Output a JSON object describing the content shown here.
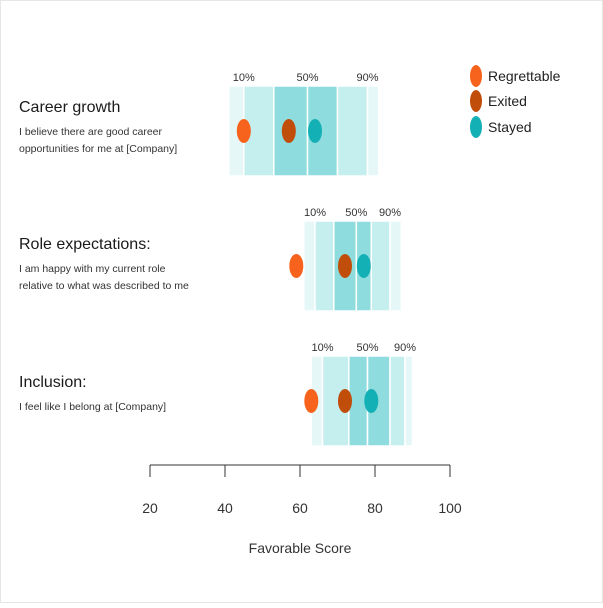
{
  "chart_data": {
    "type": "scatter",
    "xlabel": "Favorable Score",
    "xlim": [
      20,
      100
    ],
    "x_ticks": [
      20,
      40,
      60,
      80,
      100
    ],
    "x_tick_labels": [
      "20",
      "40",
      "60",
      "80",
      "100"
    ],
    "legend": {
      "position": "top-right",
      "entries": [
        {
          "name": "Regrettable",
          "color": "#f7631c"
        },
        {
          "name": "Exited",
          "color": "#c14d0b"
        },
        {
          "name": "Stayed",
          "color": "#13b0b5"
        }
      ]
    },
    "band_colors": [
      "#e6f7f8",
      "#c5eeef",
      "#8fdcdf"
    ],
    "percentile_labels": [
      "10%",
      "50%",
      "90%"
    ],
    "categories": [
      {
        "title": "Career growth",
        "description": [
          "I believe there are good career",
          "opportunities for me at [Company]"
        ],
        "bands": [
          41,
          45,
          53,
          62,
          70,
          78,
          81
        ],
        "p10": 45,
        "p50": 62,
        "p90": 78,
        "points": {
          "Regrettable": 45,
          "Exited": 57,
          "Stayed": 64
        }
      },
      {
        "title": "Role expectations:",
        "description": [
          "I am happy with my current role",
          "relative to what was described to me"
        ],
        "bands": [
          61,
          64,
          69,
          75,
          79,
          84,
          87
        ],
        "p10": 64,
        "p50": 75,
        "p90": 84,
        "points": {
          "Regrettable": 59,
          "Exited": 72,
          "Stayed": 77
        }
      },
      {
        "title": "Inclusion:",
        "description": [
          "I feel like I belong at [Company]"
        ],
        "bands": [
          63,
          66,
          73,
          78,
          84,
          88,
          90
        ],
        "p10": 66,
        "p50": 78,
        "p90": 88,
        "points": {
          "Regrettable": 63,
          "Exited": 72,
          "Stayed": 79
        }
      }
    ]
  }
}
